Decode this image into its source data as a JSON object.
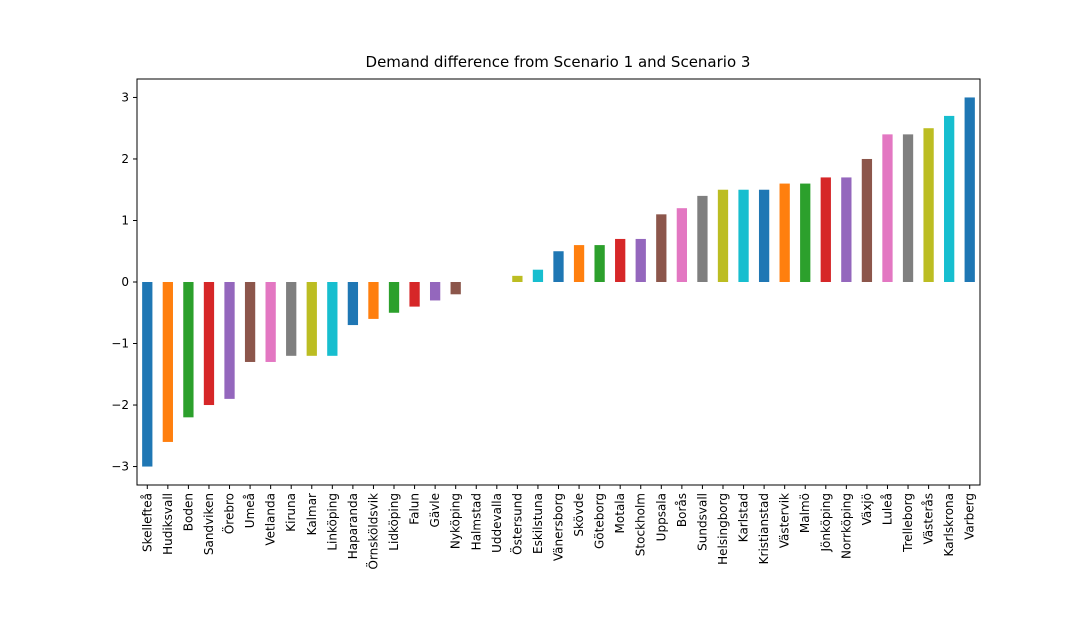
{
  "chart_data": {
    "type": "bar",
    "title": "Demand difference from Scenario 1 and Scenario 3",
    "xlabel": "",
    "ylabel": "",
    "ylim": [
      -3.3,
      3.3
    ],
    "yticks": [
      -3,
      -2,
      -1,
      0,
      1,
      2,
      3
    ],
    "ytick_labels": [
      "−3",
      "−2",
      "−1",
      "0",
      "1",
      "2",
      "3"
    ],
    "grid": false,
    "categories": [
      "Skellefteå",
      "Hudiksvall",
      "Boden",
      "Sandviken",
      "Örebro",
      "Umeå",
      "Vetlanda",
      "Kiruna",
      "Kalmar",
      "Linköping",
      "Haparanda",
      "Örnsköldsvik",
      "Lidköping",
      "Falun",
      "Gävle",
      "Nyköping",
      "Halmstad",
      "Uddevalla",
      "Östersund",
      "Eskilstuna",
      "Vänersborg",
      "Skövde",
      "Göteborg",
      "Motala",
      "Stockholm",
      "Uppsala",
      "Borås",
      "Sundsvall",
      "Helsingborg",
      "Karlstad",
      "Kristianstad",
      "Västervik",
      "Malmö",
      "Jönköping",
      "Norrköping",
      "Växjö",
      "Luleå",
      "Trelleborg",
      "Västerås",
      "Karlskrona",
      "Varberg"
    ],
    "values": [
      -3.0,
      -2.6,
      -2.2,
      -2.0,
      -1.9,
      -1.3,
      -1.3,
      -1.2,
      -1.2,
      -1.2,
      -0.7,
      -0.6,
      -0.5,
      -0.4,
      -0.3,
      -0.2,
      0.0,
      0.0,
      0.1,
      0.2,
      0.5,
      0.6,
      0.6,
      0.7,
      0.7,
      1.1,
      1.2,
      1.4,
      1.5,
      1.5,
      1.5,
      1.6,
      1.6,
      1.7,
      1.7,
      2.0,
      2.4,
      2.4,
      2.5,
      2.7,
      3.0
    ],
    "colors": [
      "#1f77b4",
      "#ff7f0e",
      "#2ca02c",
      "#d62728",
      "#9467bd",
      "#8c564b",
      "#e377c2",
      "#7f7f7f",
      "#bcbd22",
      "#17becf"
    ]
  }
}
